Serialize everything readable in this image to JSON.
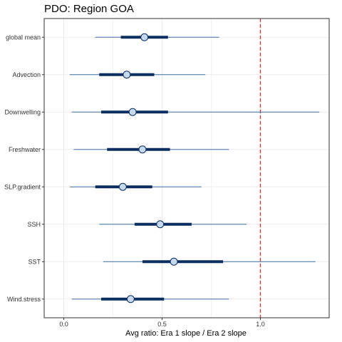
{
  "chart_data": {
    "type": "interval",
    "title": "PDO: Region GOA",
    "xlabel": "Avg ratio: Era 1 slope / Era 2 slope",
    "ylabel": "",
    "xlim": [
      -0.1,
      1.35
    ],
    "xticks": [
      0.0,
      0.5,
      1.0
    ],
    "xtick_labels": [
      "0.0",
      "0.5",
      "1.0"
    ],
    "reference_line": {
      "x": 1.0,
      "color": "#ff2a2a",
      "style": "dashed"
    },
    "grid": true,
    "categories": [
      "global mean",
      "Advection",
      "Downwelling",
      "Freshwater",
      "SLP.gradient",
      "SSH",
      "SST",
      "Wind.stress"
    ],
    "series": [
      {
        "median": 0.41,
        "inner": [
          0.29,
          0.53
        ],
        "outer": [
          0.16,
          0.79
        ]
      },
      {
        "median": 0.32,
        "inner": [
          0.18,
          0.46
        ],
        "outer": [
          0.03,
          0.72
        ]
      },
      {
        "median": 0.35,
        "inner": [
          0.19,
          0.53
        ],
        "outer": [
          0.04,
          1.3
        ]
      },
      {
        "median": 0.4,
        "inner": [
          0.22,
          0.54
        ],
        "outer": [
          0.05,
          0.84
        ]
      },
      {
        "median": 0.3,
        "inner": [
          0.16,
          0.45
        ],
        "outer": [
          0.03,
          0.7
        ]
      },
      {
        "median": 0.49,
        "inner": [
          0.36,
          0.65
        ],
        "outer": [
          0.18,
          0.93
        ]
      },
      {
        "median": 0.56,
        "inner": [
          0.4,
          0.81
        ],
        "outer": [
          0.2,
          1.28
        ]
      },
      {
        "median": 0.34,
        "inner": [
          0.19,
          0.51
        ],
        "outer": [
          0.04,
          0.84
        ]
      }
    ],
    "colors": {
      "outer_line": "#3f6f9f",
      "inner_line": "#0b2d5f",
      "point_fill": "#c6d9ee",
      "point_stroke": "#0b2d5f",
      "panel_border": "#333333",
      "grid": "#e6e6e6"
    }
  }
}
